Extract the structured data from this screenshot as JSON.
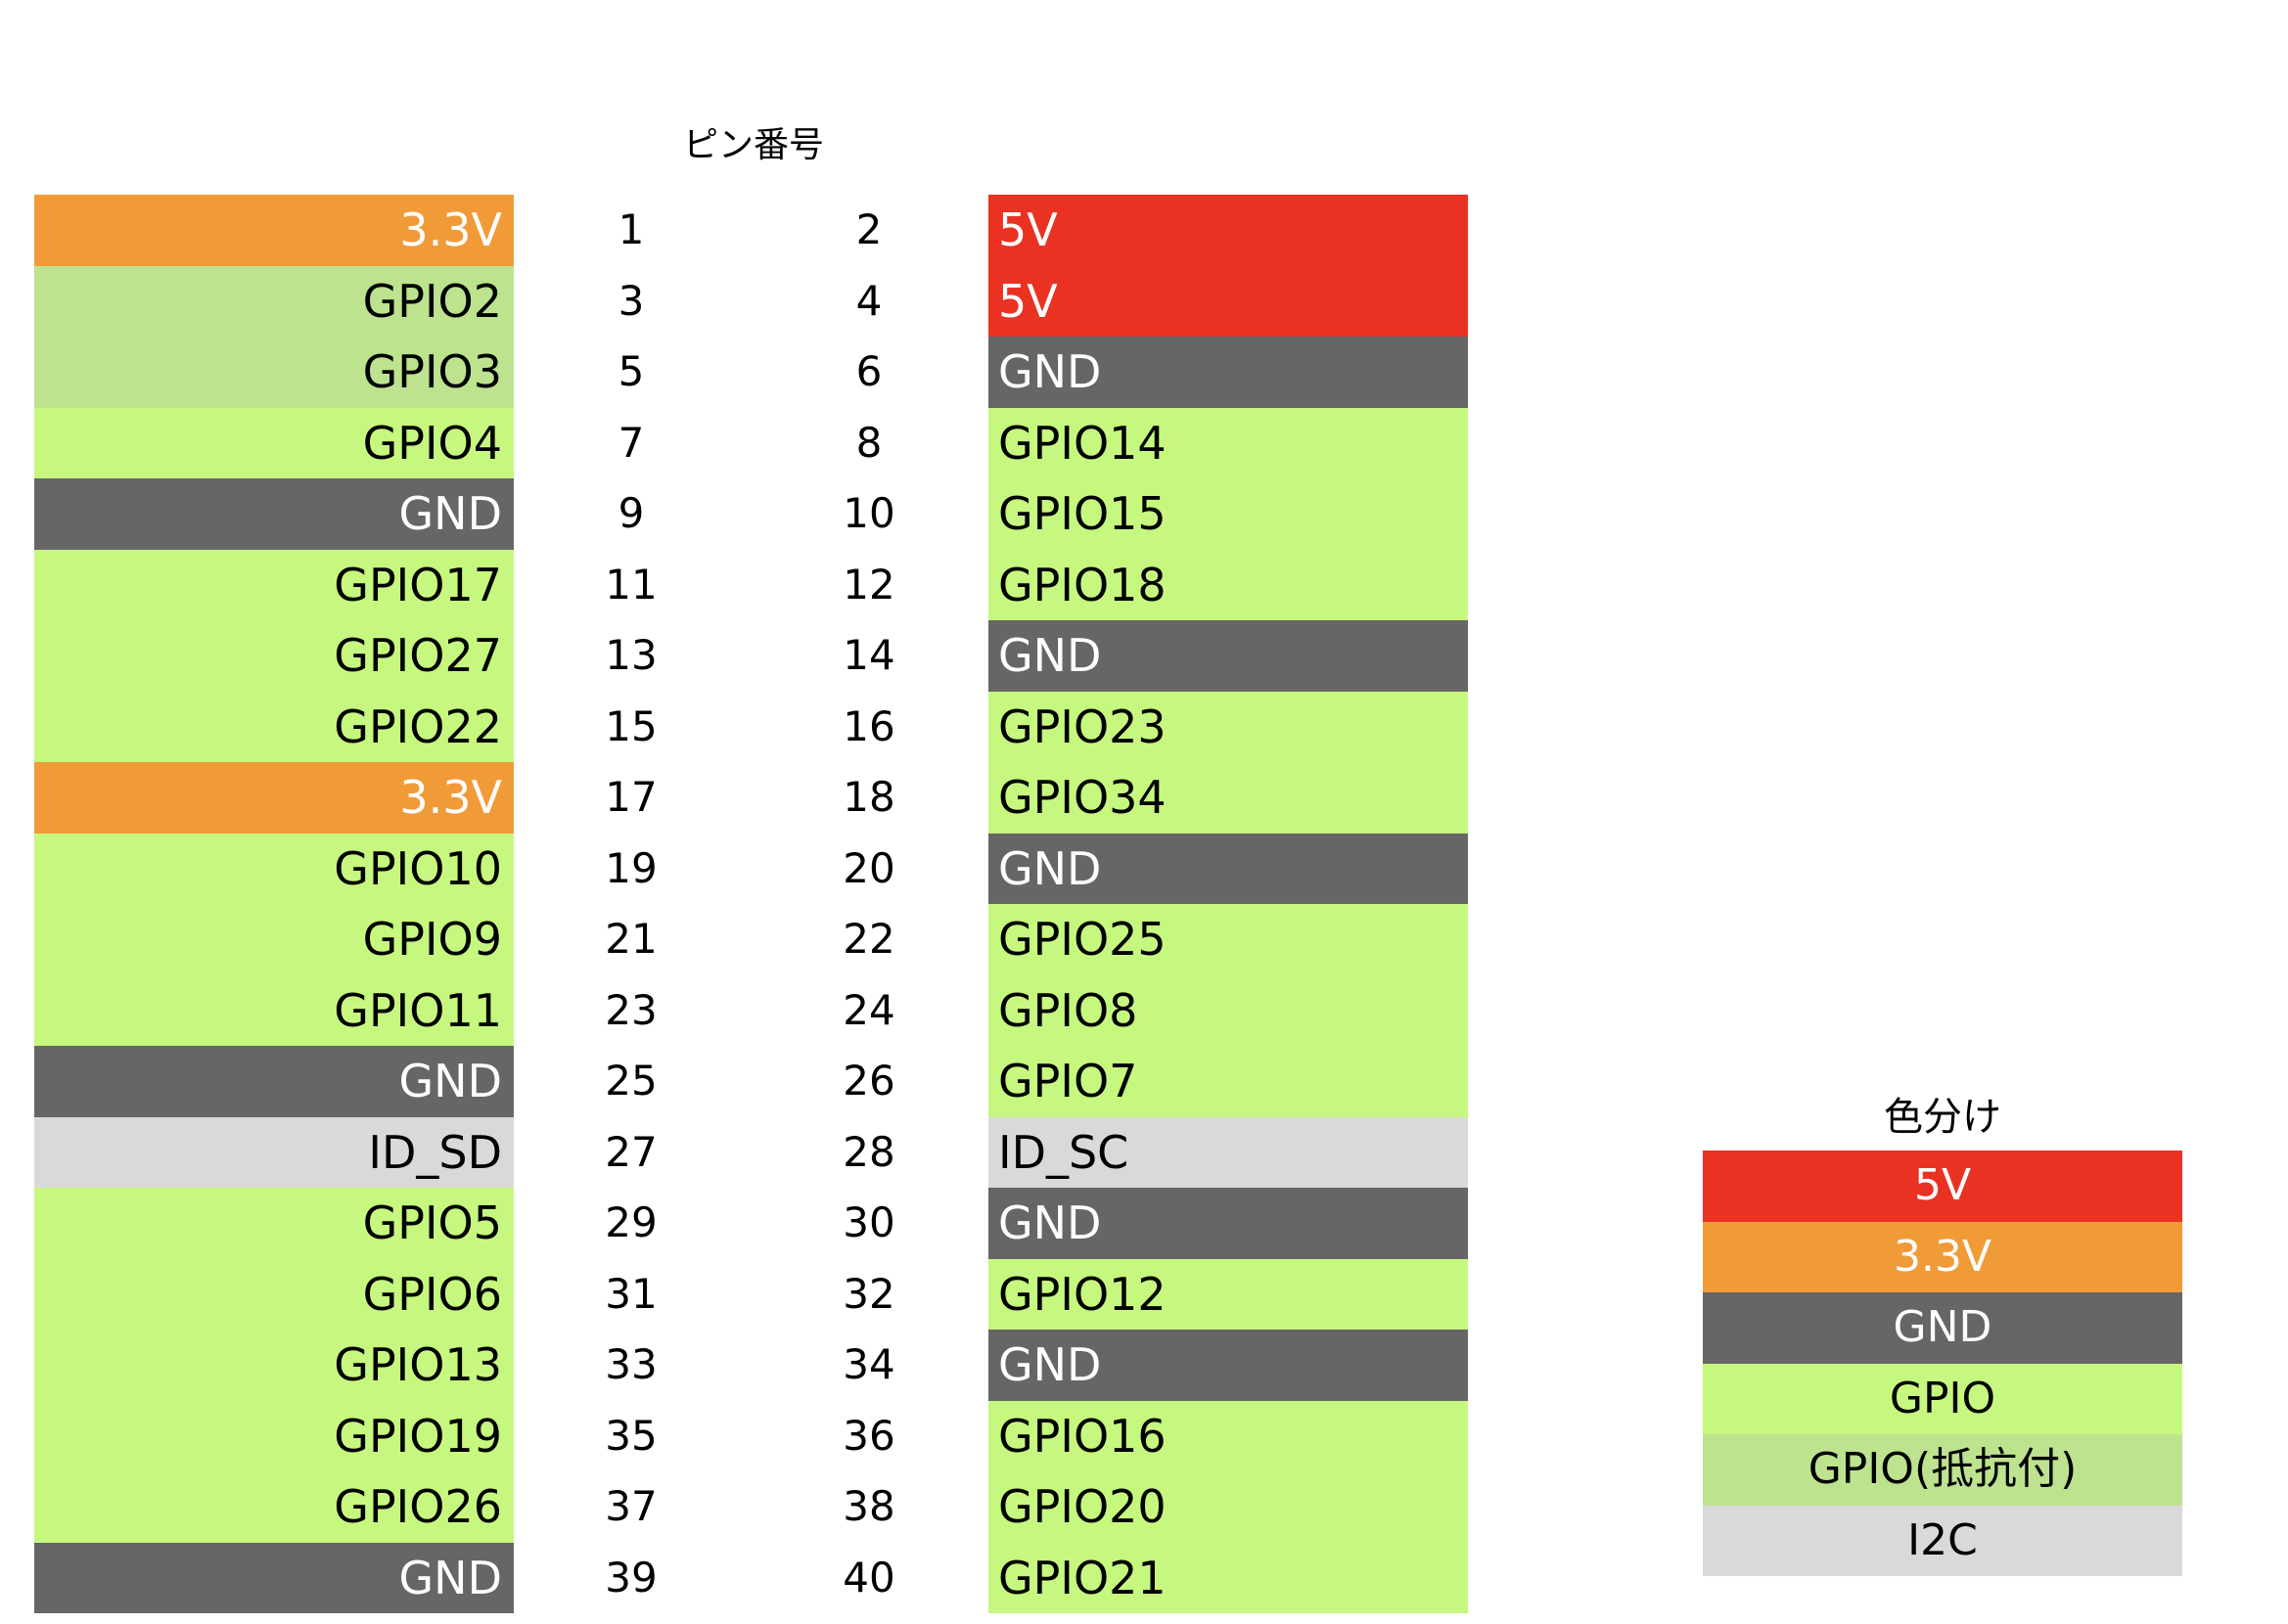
{
  "header": {
    "title": "ピン番号"
  },
  "colors": {
    "5V": "#ea3223",
    "3.3V": "#f19b38",
    "GND": "#666666",
    "GPIO": "#c6f880",
    "GPIO_R": "#bde38f",
    "I2C": "#d9d9d9"
  },
  "text_colors": {
    "5V": "#ffffff",
    "3.3V": "#ffffff",
    "GND": "#ffffff",
    "GPIO": "#000000",
    "GPIO_R": "#000000",
    "I2C": "#000000"
  },
  "pins": [
    {
      "left": {
        "label": "3.3V",
        "type": "3.3V"
      },
      "left_num": "1",
      "right_num": "2",
      "right": {
        "label": "5V",
        "type": "5V"
      }
    },
    {
      "left": {
        "label": "GPIO2",
        "type": "GPIO_R"
      },
      "left_num": "3",
      "right_num": "4",
      "right": {
        "label": "5V",
        "type": "5V"
      }
    },
    {
      "left": {
        "label": "GPIO3",
        "type": "GPIO_R"
      },
      "left_num": "5",
      "right_num": "6",
      "right": {
        "label": "GND",
        "type": "GND"
      }
    },
    {
      "left": {
        "label": "GPIO4",
        "type": "GPIO"
      },
      "left_num": "7",
      "right_num": "8",
      "right": {
        "label": "GPIO14",
        "type": "GPIO"
      }
    },
    {
      "left": {
        "label": "GND",
        "type": "GND"
      },
      "left_num": "9",
      "right_num": "10",
      "right": {
        "label": "GPIO15",
        "type": "GPIO"
      }
    },
    {
      "left": {
        "label": "GPIO17",
        "type": "GPIO"
      },
      "left_num": "11",
      "right_num": "12",
      "right": {
        "label": "GPIO18",
        "type": "GPIO"
      }
    },
    {
      "left": {
        "label": "GPIO27",
        "type": "GPIO"
      },
      "left_num": "13",
      "right_num": "14",
      "right": {
        "label": "GND",
        "type": "GND"
      }
    },
    {
      "left": {
        "label": "GPIO22",
        "type": "GPIO"
      },
      "left_num": "15",
      "right_num": "16",
      "right": {
        "label": "GPIO23",
        "type": "GPIO"
      }
    },
    {
      "left": {
        "label": "3.3V",
        "type": "3.3V"
      },
      "left_num": "17",
      "right_num": "18",
      "right": {
        "label": "GPIO34",
        "type": "GPIO"
      }
    },
    {
      "left": {
        "label": "GPIO10",
        "type": "GPIO"
      },
      "left_num": "19",
      "right_num": "20",
      "right": {
        "label": "GND",
        "type": "GND"
      }
    },
    {
      "left": {
        "label": "GPIO9",
        "type": "GPIO"
      },
      "left_num": "21",
      "right_num": "22",
      "right": {
        "label": "GPIO25",
        "type": "GPIO"
      }
    },
    {
      "left": {
        "label": "GPIO11",
        "type": "GPIO"
      },
      "left_num": "23",
      "right_num": "24",
      "right": {
        "label": "GPIO8",
        "type": "GPIO"
      }
    },
    {
      "left": {
        "label": "GND",
        "type": "GND"
      },
      "left_num": "25",
      "right_num": "26",
      "right": {
        "label": "GPIO7",
        "type": "GPIO"
      }
    },
    {
      "left": {
        "label": "ID_SD",
        "type": "I2C"
      },
      "left_num": "27",
      "right_num": "28",
      "right": {
        "label": "ID_SC",
        "type": "I2C"
      }
    },
    {
      "left": {
        "label": "GPIO5",
        "type": "GPIO"
      },
      "left_num": "29",
      "right_num": "30",
      "right": {
        "label": "GND",
        "type": "GND"
      }
    },
    {
      "left": {
        "label": "GPIO6",
        "type": "GPIO"
      },
      "left_num": "31",
      "right_num": "32",
      "right": {
        "label": "GPIO12",
        "type": "GPIO"
      }
    },
    {
      "left": {
        "label": "GPIO13",
        "type": "GPIO"
      },
      "left_num": "33",
      "right_num": "34",
      "right": {
        "label": "GND",
        "type": "GND"
      }
    },
    {
      "left": {
        "label": "GPIO19",
        "type": "GPIO"
      },
      "left_num": "35",
      "right_num": "36",
      "right": {
        "label": "GPIO16",
        "type": "GPIO"
      }
    },
    {
      "left": {
        "label": "GPIO26",
        "type": "GPIO"
      },
      "left_num": "37",
      "right_num": "38",
      "right": {
        "label": "GPIO20",
        "type": "GPIO"
      }
    },
    {
      "left": {
        "label": "GND",
        "type": "GND"
      },
      "left_num": "39",
      "right_num": "40",
      "right": {
        "label": "GPIO21",
        "type": "GPIO"
      }
    }
  ],
  "legend": {
    "title": "色分け",
    "items": [
      {
        "label": "5V",
        "type": "5V"
      },
      {
        "label": "3.3V",
        "type": "3.3V"
      },
      {
        "label": "GND",
        "type": "GND"
      },
      {
        "label": "GPIO",
        "type": "GPIO"
      },
      {
        "label": "GPIO(抵抗付)",
        "type": "GPIO_R"
      },
      {
        "label": "I2C",
        "type": "I2C"
      }
    ]
  }
}
